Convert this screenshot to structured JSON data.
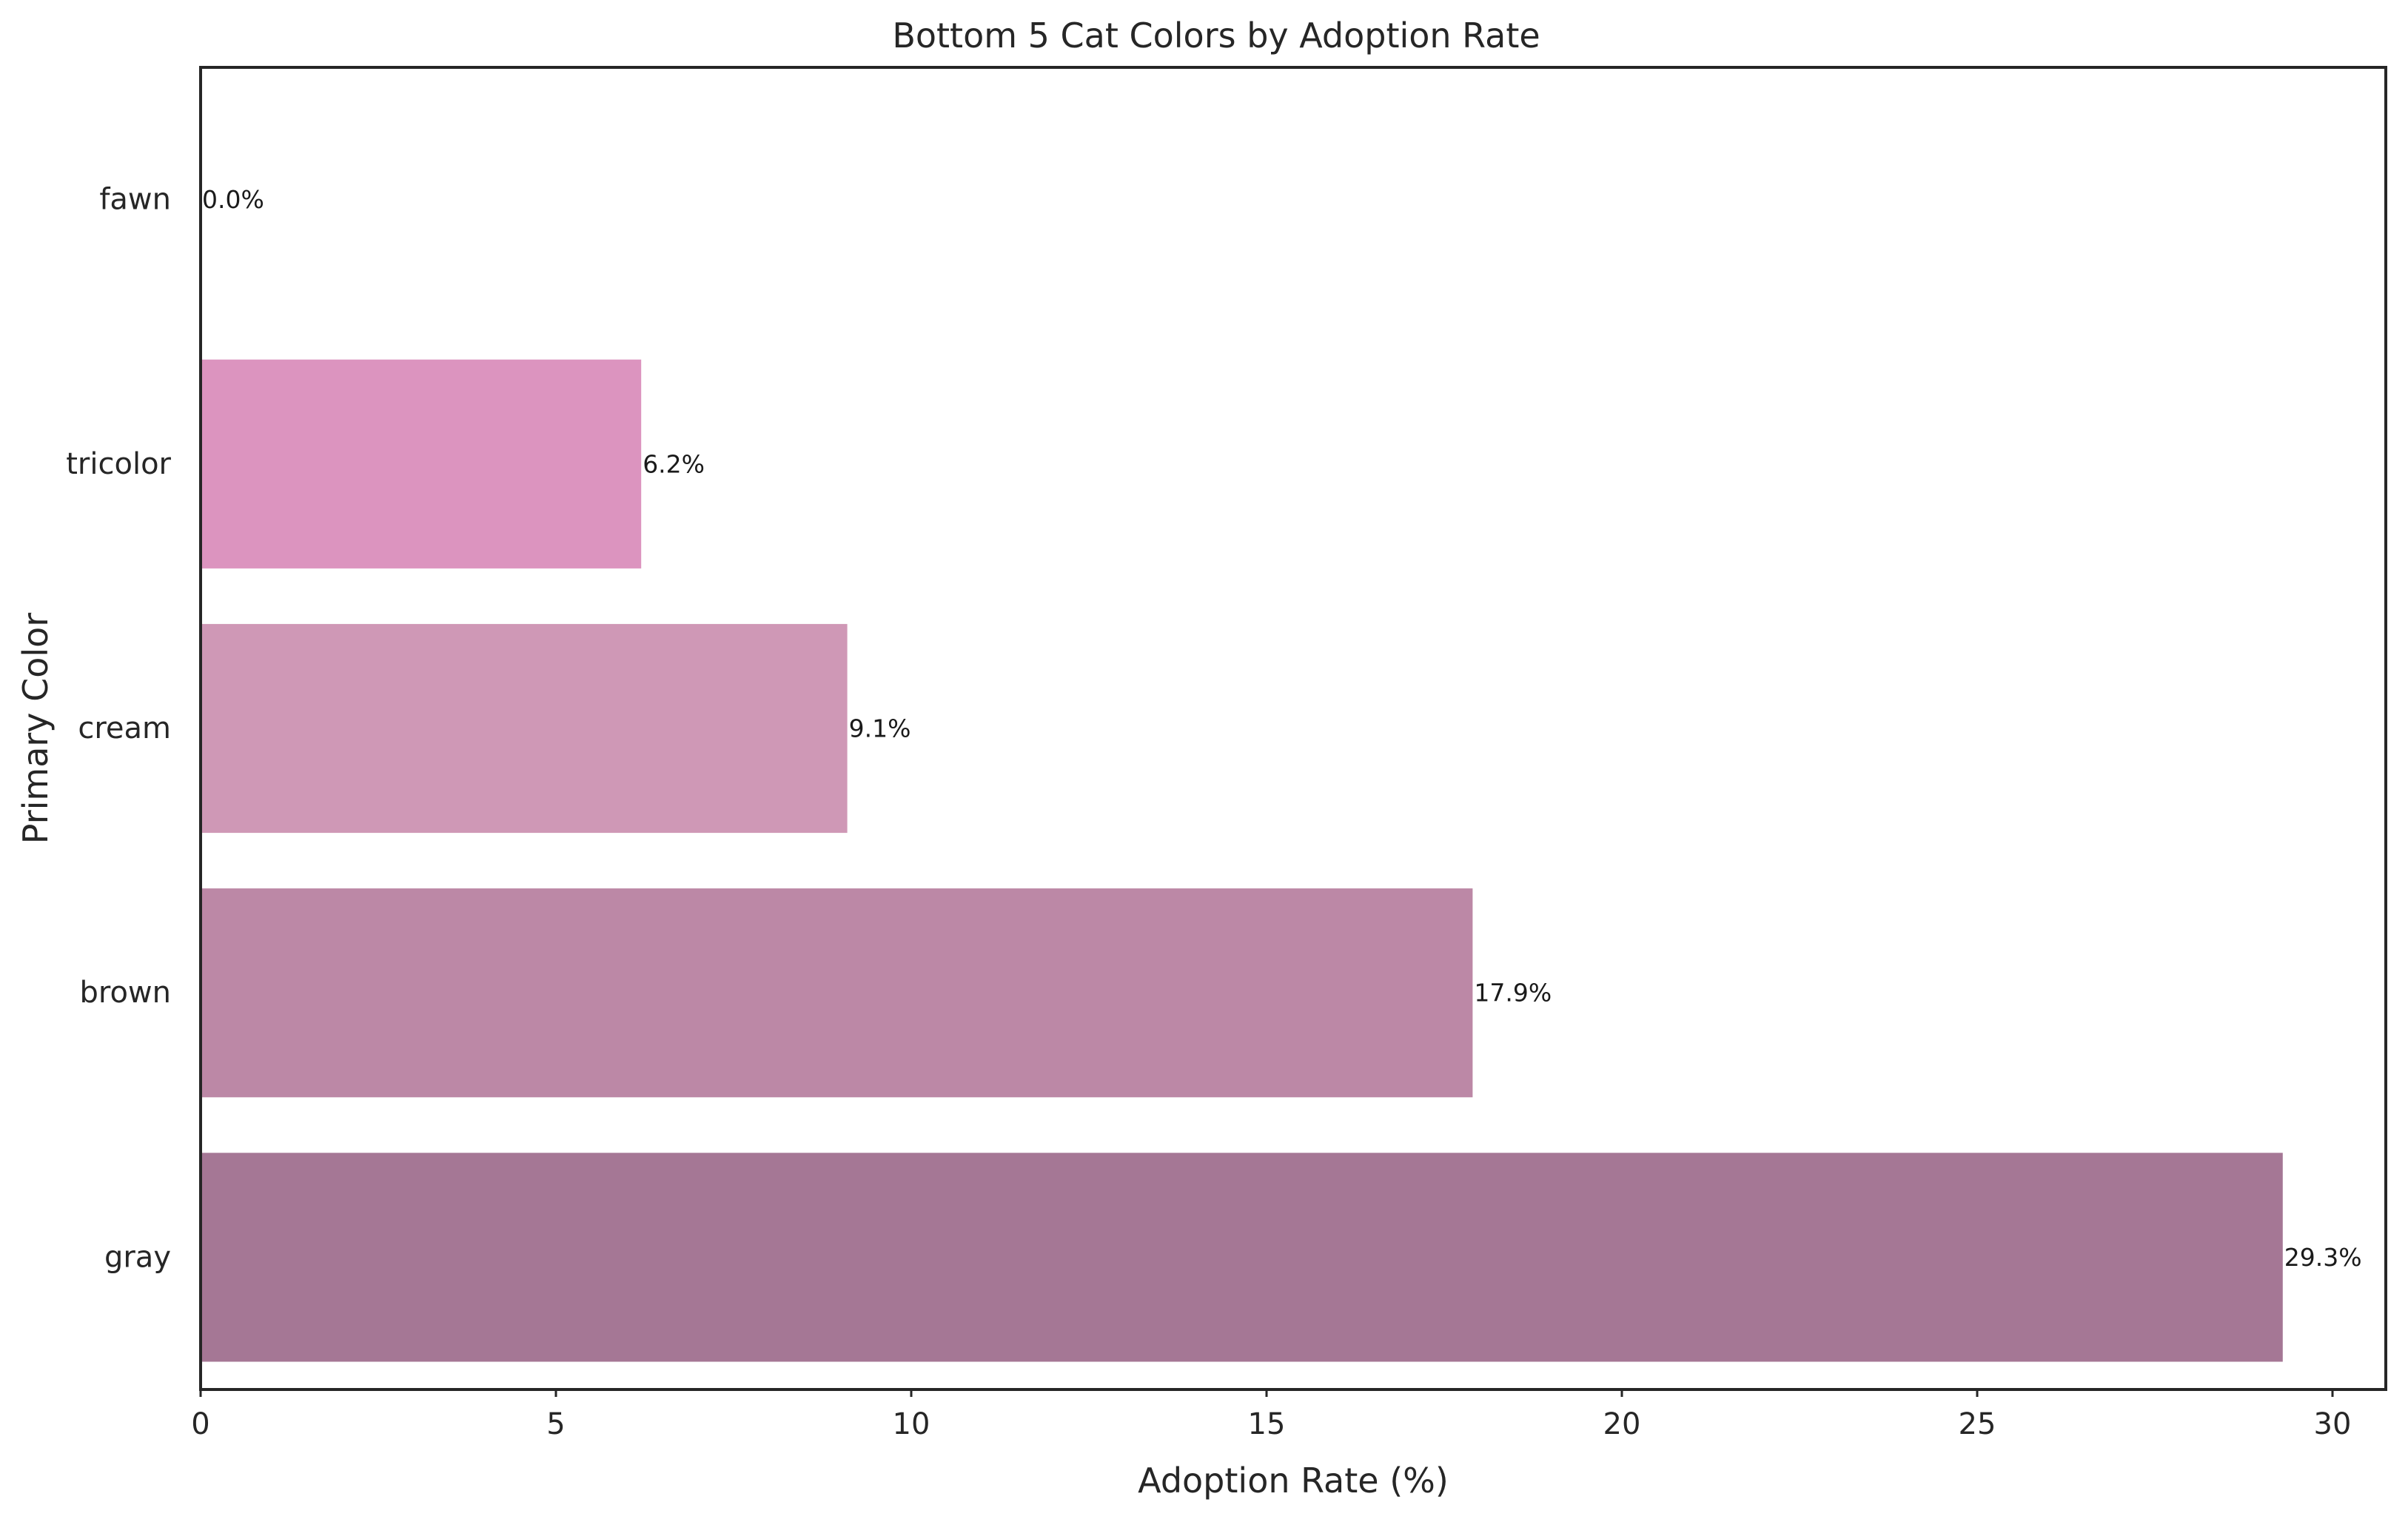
{
  "chart_data": {
    "type": "bar",
    "orientation": "horizontal",
    "title": "Bottom 5 Cat Colors by Adoption Rate",
    "xlabel": "Adoption Rate (%)",
    "ylabel": "Primary Color",
    "categories": [
      "fawn",
      "tricolor",
      "cream",
      "brown",
      "gray"
    ],
    "values": [
      0.0,
      6.2,
      9.1,
      17.9,
      29.3
    ],
    "value_labels": [
      "0.0%",
      "6.2%",
      "9.1%",
      "17.9%",
      "29.3%"
    ],
    "colors": [
      "#e8a0c8",
      "#dc94bf",
      "#cf98b6",
      "#bc88a6",
      "#a57795"
    ],
    "xlim": [
      0,
      30.75
    ],
    "xticks": [
      0,
      5,
      10,
      15,
      20,
      25,
      30
    ],
    "xtick_labels": [
      "0",
      "5",
      "10",
      "15",
      "20",
      "25",
      "30"
    ],
    "grid": false,
    "legend": "none"
  }
}
